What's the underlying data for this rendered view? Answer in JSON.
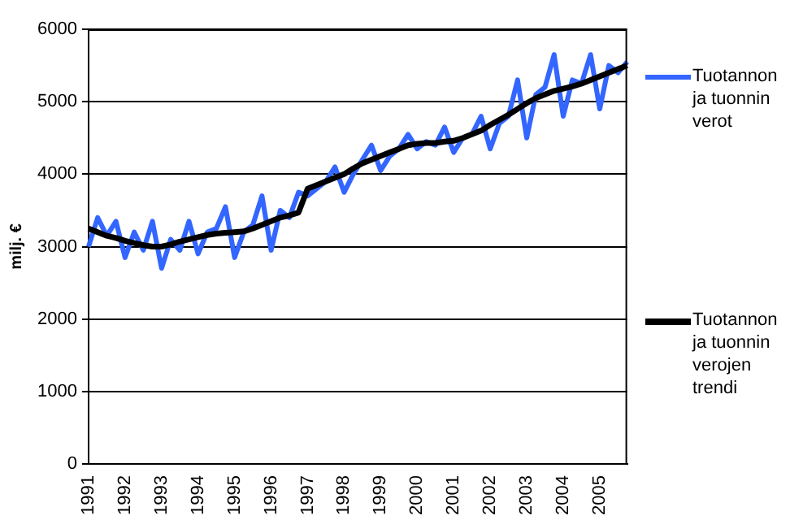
{
  "chart_data": {
    "type": "line",
    "ylabel": "milj. €",
    "categories": [
      "1991",
      null,
      null,
      null,
      "1992",
      null,
      null,
      null,
      "1993",
      null,
      null,
      null,
      "1994",
      null,
      null,
      null,
      "1995",
      null,
      null,
      null,
      "1996",
      null,
      null,
      null,
      "1997",
      null,
      null,
      null,
      "1998",
      null,
      null,
      null,
      "1999",
      null,
      null,
      null,
      "2000",
      null,
      null,
      null,
      "2001",
      null,
      null,
      null,
      "2002",
      null,
      null,
      null,
      "2003",
      null,
      null,
      null,
      "2004",
      null,
      null,
      null,
      "2005",
      null,
      null,
      null
    ],
    "series": [
      {
        "name": "Tuotannon ja tuonnin verot",
        "color": "#3366ff",
        "values": [
          3000,
          3400,
          3150,
          3350,
          2850,
          3200,
          2950,
          3350,
          2700,
          3100,
          2950,
          3350,
          2900,
          3200,
          3250,
          3550,
          2850,
          3200,
          3300,
          3700,
          2950,
          3500,
          3400,
          3750,
          3700,
          3800,
          3900,
          4100,
          3750,
          4000,
          4200,
          4400,
          4050,
          4250,
          4350,
          4550,
          4350,
          4450,
          4400,
          4650,
          4300,
          4500,
          4550,
          4800,
          4350,
          4700,
          4800,
          5300,
          4500,
          5100,
          5200,
          5650,
          4800,
          5300,
          5250,
          5650,
          4900,
          5500,
          5400,
          5550
        ]
      },
      {
        "name": "Tuotannon ja tuonnin verojen trendi",
        "color": "#000000",
        "values": [
          3250,
          3200,
          3150,
          3120,
          3080,
          3050,
          3020,
          3000,
          3000,
          3030,
          3070,
          3100,
          3130,
          3160,
          3180,
          3190,
          3200,
          3210,
          3250,
          3300,
          3350,
          3400,
          3430,
          3470,
          3800,
          3850,
          3900,
          3950,
          4000,
          4080,
          4150,
          4200,
          4250,
          4300,
          4350,
          4400,
          4420,
          4430,
          4430,
          4450,
          4460,
          4500,
          4550,
          4600,
          4680,
          4750,
          4820,
          4900,
          4980,
          5050,
          5100,
          5150,
          5180,
          5210,
          5250,
          5300,
          5350,
          5400,
          5450,
          5500
        ]
      }
    ],
    "ylim": [
      0,
      6000
    ],
    "yticks": [
      0,
      1000,
      2000,
      3000,
      4000,
      5000,
      6000
    ],
    "grid": "y",
    "legend": "right",
    "marker": "none",
    "line_style": "solid"
  }
}
